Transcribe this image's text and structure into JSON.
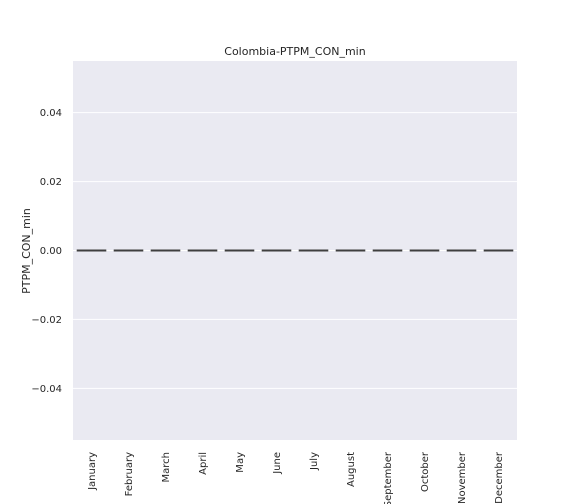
{
  "chart_data": {
    "type": "box",
    "title": "Colombia-PTPM_CON_min",
    "xlabel": "",
    "ylabel": "PTPM_CON_min",
    "categories": [
      "January",
      "February",
      "March",
      "April",
      "May",
      "June",
      "July",
      "August",
      "September",
      "October",
      "November",
      "December"
    ],
    "series": [
      {
        "values": [
          0,
          0,
          0,
          0,
          0,
          0,
          0,
          0,
          0,
          0,
          0,
          0
        ]
      }
    ],
    "ylim": [
      -0.055,
      0.055
    ],
    "yticks": [
      -0.04,
      -0.02,
      0.0,
      0.02,
      0.04
    ],
    "ytick_labels": [
      "−0.04",
      "−0.02",
      "0.00",
      "0.02",
      "0.04"
    ],
    "grid": true,
    "colors": {
      "plot_background": "#eaeaf2",
      "grid": "#ffffff",
      "mark": "#3f3f3f"
    }
  }
}
